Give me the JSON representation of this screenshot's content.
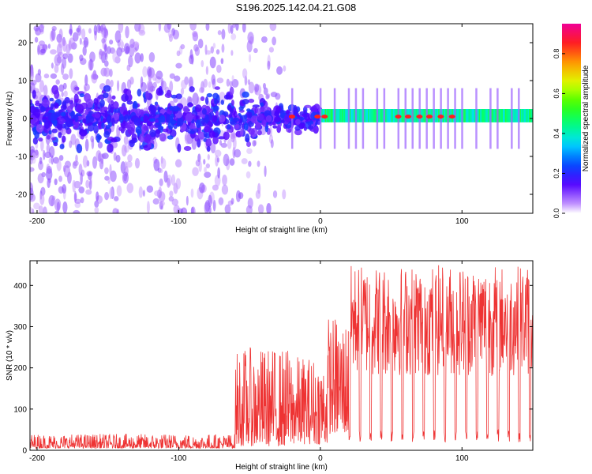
{
  "title": "S196.2025.142.04.21.G08",
  "chart_data": [
    {
      "type": "heatmap",
      "xlabel": "Height of straight line (km)",
      "ylabel": "Frequency (Hz)",
      "xlim": [
        -205,
        150
      ],
      "ylim": [
        -25,
        25
      ],
      "xticks": [
        -200,
        -100,
        0,
        100
      ],
      "yticks": [
        -20,
        -10,
        0,
        10,
        20
      ],
      "colorbar": {
        "label": "Normalized spectral amplitude",
        "range": [
          0,
          0.95
        ],
        "ticks": [
          0.0,
          0.2,
          0.4,
          0.6,
          0.8
        ]
      },
      "description_values": {
        "band_center_hz": 0,
        "peak_positions_km": [
          -20,
          0,
          40,
          55,
          70,
          85,
          100
        ]
      }
    },
    {
      "type": "line",
      "xlabel": "Height of straight line (km)",
      "ylabel": "SNR (10 * v/v)",
      "xlim": [
        -205,
        150
      ],
      "ylim": [
        0,
        460
      ],
      "xticks": [
        -200,
        -100,
        0,
        100
      ],
      "yticks": [
        0,
        100,
        200,
        300,
        400
      ],
      "color": "#ee3333",
      "segments": [
        {
          "x_from": -205,
          "x_to": -60,
          "low": 5,
          "high": 40
        },
        {
          "x_from": -60,
          "x_to": -20,
          "low": 10,
          "high": 250
        },
        {
          "x_from": -20,
          "x_to": 5,
          "low": 15,
          "high": 230
        },
        {
          "x_from": 5,
          "x_to": 20,
          "low": 40,
          "high": 330
        },
        {
          "x_from": 20,
          "x_to": 150,
          "low": 20,
          "high": 450
        }
      ]
    }
  ]
}
